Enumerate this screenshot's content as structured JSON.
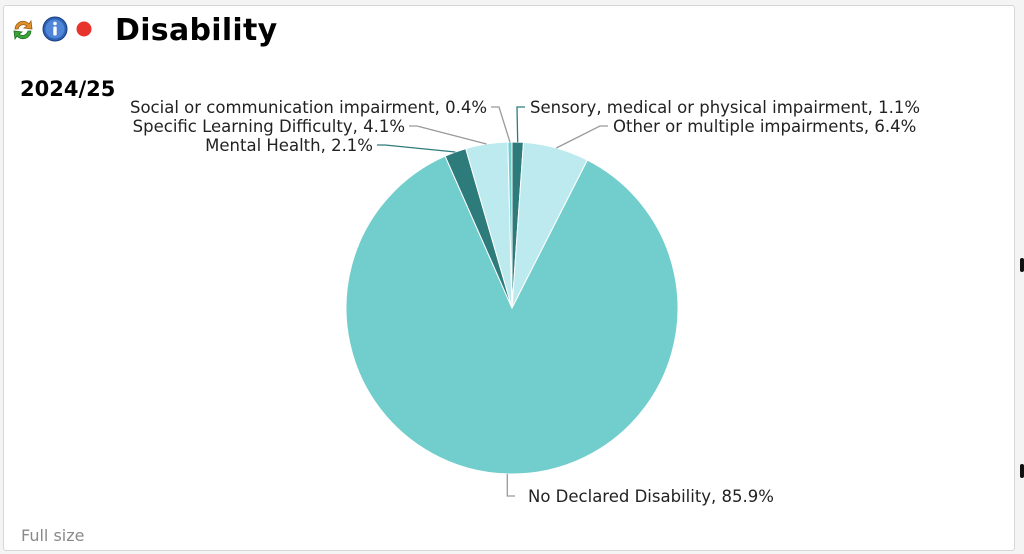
{
  "panel": {
    "title": "Disability",
    "full_size_label": "Full size",
    "icons": [
      "refresh-icon",
      "info-icon",
      "status-dot-icon"
    ]
  },
  "chart_data": {
    "type": "pie",
    "title": "Disability",
    "subtitle": "2024/25",
    "slices": [
      {
        "label": "Sensory, medical or physical impairment",
        "value": 1.1,
        "text": "Sensory, medical or physical impairment, 1.1%",
        "color": "#2d7b7b"
      },
      {
        "label": "Other or multiple impairments",
        "value": 6.4,
        "text": "Other or multiple impairments, 6.4%",
        "color": "#bdeaee"
      },
      {
        "label": "No Declared Disability",
        "value": 85.9,
        "text": "No Declared Disability, 85.9%",
        "color": "#72cecc"
      },
      {
        "label": "Mental Health",
        "value": 2.1,
        "text": "Mental Health, 2.1%",
        "color": "#2d7b7b"
      },
      {
        "label": "Specific Learning Difficulty",
        "value": 4.1,
        "text": "Specific Learning Difficulty, 4.1%",
        "color": "#bdeaee"
      },
      {
        "label": "Social or communication impairment",
        "value": 0.4,
        "text": "Social or communication impairment, 0.4%",
        "color": "#72cecc"
      }
    ],
    "start": "top",
    "direction": "clockwise",
    "legend": "none, leader-line labels"
  }
}
